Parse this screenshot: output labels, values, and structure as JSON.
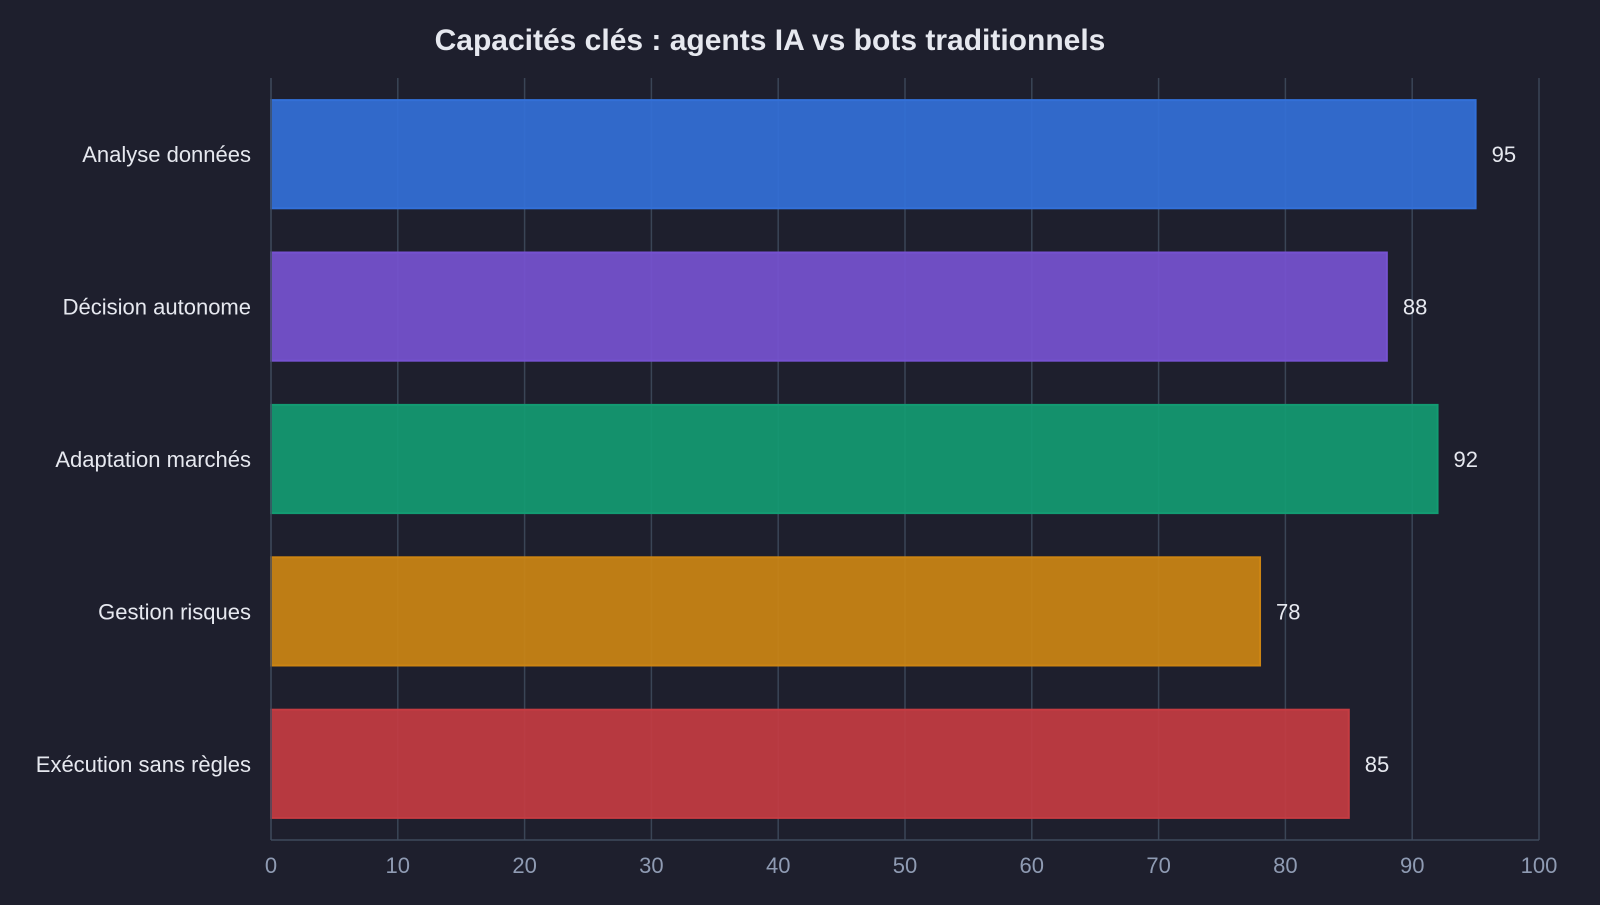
{
  "chart_data": {
    "type": "bar",
    "orientation": "horizontal",
    "title": "Capacités clés : agents IA vs bots traditionnels",
    "xlabel": "",
    "ylabel": "",
    "categories": [
      "Analyse données",
      "Décision autonome",
      "Adaptation marchés",
      "Gestion risques",
      "Exécution sans règles"
    ],
    "values": [
      95,
      88,
      92,
      78,
      85
    ],
    "value_labels": [
      "95",
      "88",
      "92",
      "78",
      "85"
    ],
    "colors": [
      "#3370d8",
      "#7652d0",
      "#139b72",
      "#cc8513",
      "#c43c42"
    ],
    "xlim": [
      0,
      100
    ],
    "x_ticks": [
      0,
      10,
      20,
      30,
      40,
      50,
      60,
      70,
      80,
      90,
      100
    ],
    "x_tick_labels": [
      "0",
      "10",
      "20",
      "30",
      "40",
      "50",
      "60",
      "70",
      "80",
      "90",
      "100"
    ],
    "grid": true,
    "legend": false
  }
}
